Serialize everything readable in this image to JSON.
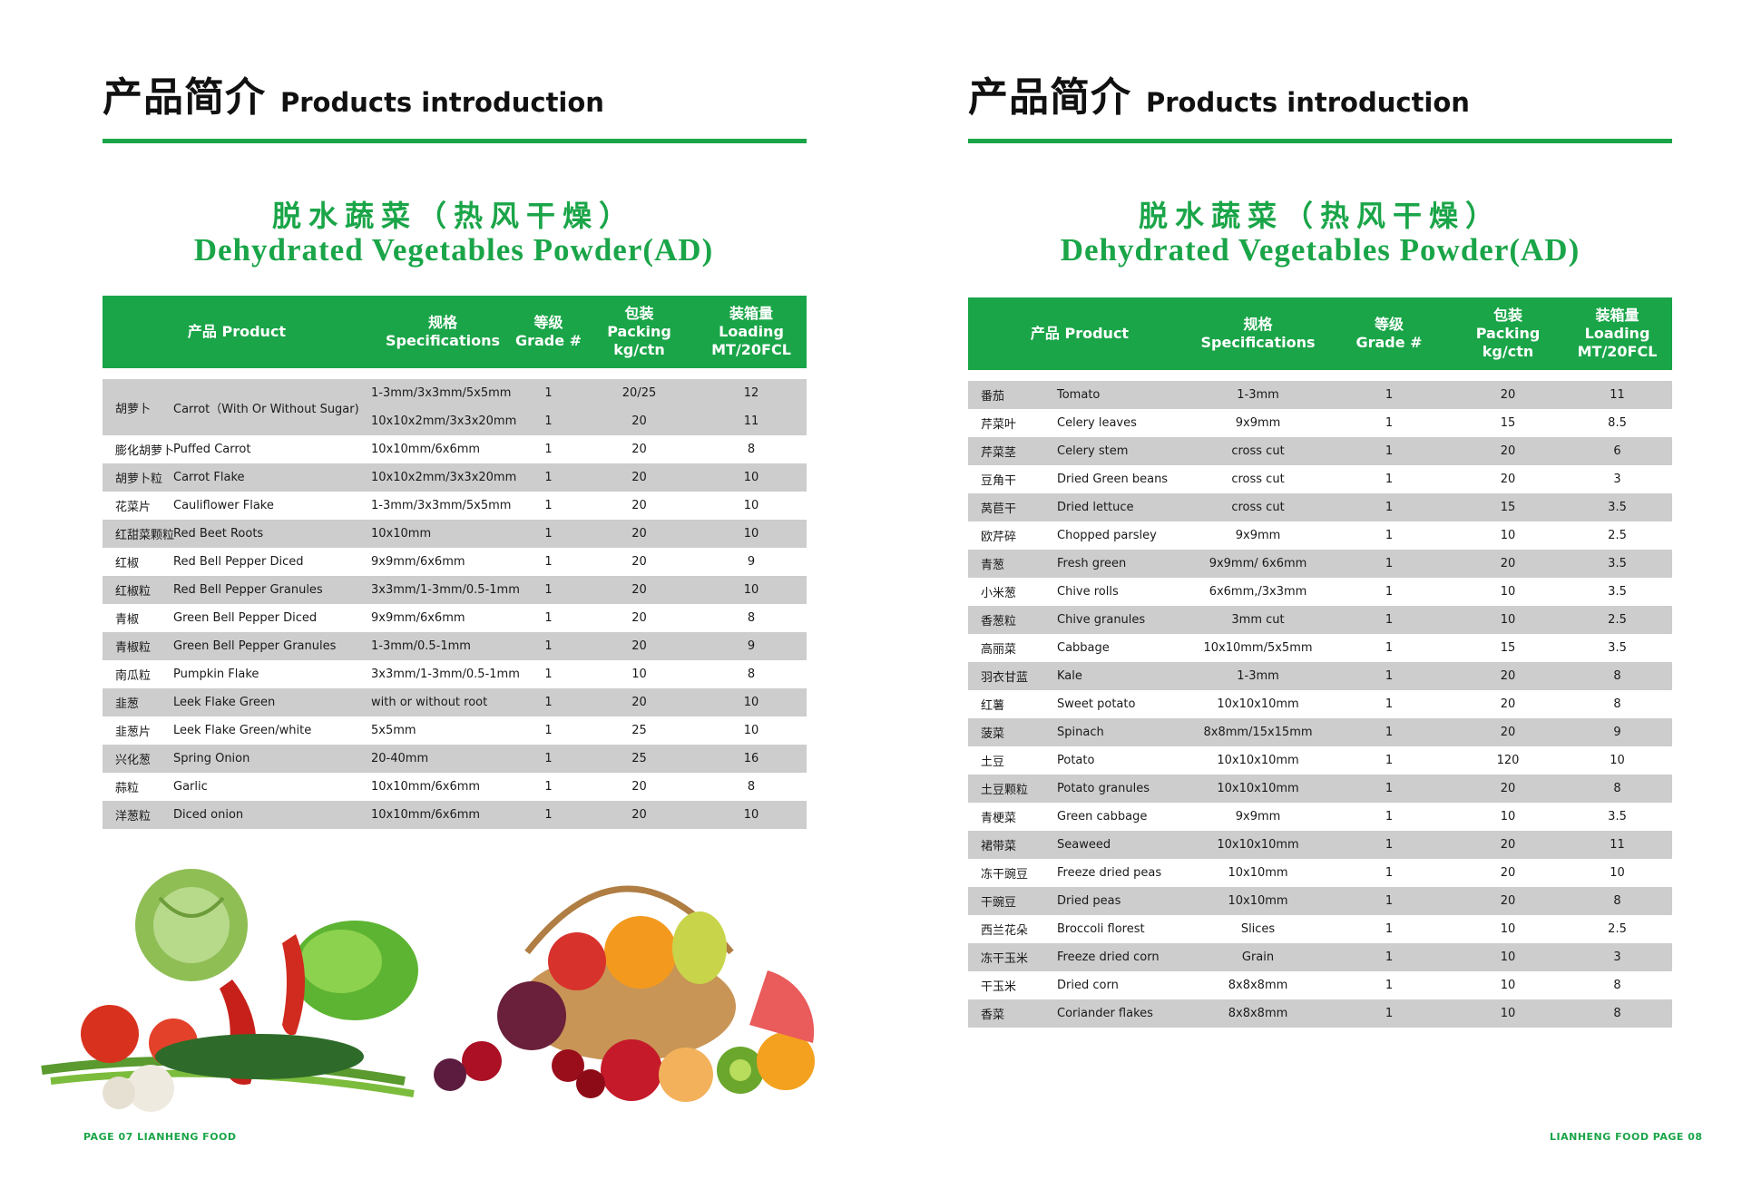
{
  "section_header": {
    "cn": "产品简介",
    "en": "Products introduction"
  },
  "title": {
    "cn": "脱水蔬菜（热风干燥）",
    "en": "Dehydrated Vegetables Powder(AD)"
  },
  "columns": {
    "product": "产品 Product",
    "spec": "规格 Specifications",
    "grade_cn": "等级",
    "grade_en": "Grade #",
    "pack_cn": "包装",
    "pack_en": "Packing kg/ctn",
    "load_cn": "装箱量",
    "load_en1": "Loading",
    "load_en2": "MT/20FCL"
  },
  "left_rows": [
    {
      "cn": "胡萝卜",
      "en": "Carrot（With Or Without Sugar)",
      "specs": [
        "1-3mm/3x3mm/5x5mm",
        "10x10x2mm/3x3x20mm"
      ],
      "grades": [
        "1",
        "1"
      ],
      "packs": [
        "20/25",
        "20"
      ],
      "loads": [
        "12",
        "11"
      ]
    },
    {
      "cn": "膨化胡萝卜",
      "en": "Puffed Carrot",
      "spec": "10x10mm/6x6mm",
      "grade": "1",
      "pack": "20",
      "load": "8"
    },
    {
      "cn": "胡萝卜粒",
      "en": "Carrot Flake",
      "spec": "10x10x2mm/3x3x20mm",
      "grade": "1",
      "pack": "20",
      "load": "10"
    },
    {
      "cn": "花菜片",
      "en": "Cauliflower Flake",
      "spec": "1-3mm/3x3mm/5x5mm",
      "grade": "1",
      "pack": "20",
      "load": "10"
    },
    {
      "cn": "红甜菜颗粒",
      "en": "Red Beet Roots",
      "spec": "10x10mm",
      "grade": "1",
      "pack": "20",
      "load": "10"
    },
    {
      "cn": "红椒",
      "en": "Red Bell Pepper Diced",
      "spec": "9x9mm/6x6mm",
      "grade": "1",
      "pack": "20",
      "load": "9"
    },
    {
      "cn": "红椒粒",
      "en": "Red Bell Pepper Granules",
      "spec": "3x3mm/1-3mm/0.5-1mm",
      "grade": "1",
      "pack": "20",
      "load": "10"
    },
    {
      "cn": "青椒",
      "en": "Green Bell Pepper Diced",
      "spec": "9x9mm/6x6mm",
      "grade": "1",
      "pack": "20",
      "load": "8"
    },
    {
      "cn": "青椒粒",
      "en": "Green Bell Pepper Granules",
      "spec": "1-3mm/0.5-1mm",
      "grade": "1",
      "pack": "20",
      "load": "9"
    },
    {
      "cn": "南瓜粒",
      "en": "Pumpkin Flake",
      "spec": "3x3mm/1-3mm/0.5-1mm",
      "grade": "1",
      "pack": "10",
      "load": "8"
    },
    {
      "cn": "韭葱",
      "en": "Leek Flake Green",
      "spec": "with or without root",
      "grade": "1",
      "pack": "20",
      "load": "10"
    },
    {
      "cn": "韭葱片",
      "en": "Leek Flake Green/white",
      "spec": "5x5mm",
      "grade": "1",
      "pack": "25",
      "load": "10"
    },
    {
      "cn": "兴化葱",
      "en": "Spring Onion",
      "spec": "20-40mm",
      "grade": "1",
      "pack": "25",
      "load": "16"
    },
    {
      "cn": "蒜粒",
      "en": "Garlic",
      "spec": "10x10mm/6x6mm",
      "grade": "1",
      "pack": "20",
      "load": "8"
    },
    {
      "cn": "洋葱粒",
      "en": "Diced onion",
      "spec": "10x10mm/6x6mm",
      "grade": "1",
      "pack": "20",
      "load": "10"
    }
  ],
  "right_rows": [
    {
      "cn": "番茄",
      "en": "Tomato",
      "spec": "1-3mm",
      "grade": "1",
      "pack": "20",
      "load": "11"
    },
    {
      "cn": "芹菜叶",
      "en": "Celery leaves",
      "spec": "9x9mm",
      "grade": "1",
      "pack": "15",
      "load": "8.5"
    },
    {
      "cn": "芹菜茎",
      "en": "Celery stem",
      "spec": "cross cut",
      "grade": "1",
      "pack": "20",
      "load": "6"
    },
    {
      "cn": "豆角干",
      "en": "Dried Green beans",
      "spec": "cross cut",
      "grade": "1",
      "pack": "20",
      "load": "3"
    },
    {
      "cn": "莴苣干",
      "en": "Dried lettuce",
      "spec": "cross cut",
      "grade": "1",
      "pack": "15",
      "load": "3.5"
    },
    {
      "cn": "欧芹碎",
      "en": "Chopped parsley",
      "spec": "9x9mm",
      "grade": "1",
      "pack": "10",
      "load": "2.5"
    },
    {
      "cn": "青葱",
      "en": "Fresh green",
      "spec": "9x9mm/ 6x6mm",
      "grade": "1",
      "pack": "20",
      "load": "3.5"
    },
    {
      "cn": "小米葱",
      "en": "Chive rolls",
      "spec": "6x6mm,/3x3mm",
      "grade": "1",
      "pack": "10",
      "load": "3.5"
    },
    {
      "cn": "香葱粒",
      "en": "Chive granules",
      "spec": "3mm cut",
      "grade": "1",
      "pack": "10",
      "load": "2.5"
    },
    {
      "cn": "高丽菜",
      "en": "Cabbage",
      "spec": "10x10mm/5x5mm",
      "grade": "1",
      "pack": "15",
      "load": "3.5"
    },
    {
      "cn": "羽衣甘蓝",
      "en": "Kale",
      "spec": "1-3mm",
      "grade": "1",
      "pack": "20",
      "load": "8"
    },
    {
      "cn": "红薯",
      "en": "Sweet potato",
      "spec": "10x10x10mm",
      "grade": "1",
      "pack": "20",
      "load": "8"
    },
    {
      "cn": "菠菜",
      "en": "Spinach",
      "spec": "8x8mm/15x15mm",
      "grade": "1",
      "pack": "20",
      "load": "9"
    },
    {
      "cn": "土豆",
      "en": "Potato",
      "spec": "10x10x10mm",
      "grade": "1",
      "pack": "120",
      "load": "10"
    },
    {
      "cn": "土豆颗粒",
      "en": "Potato granules",
      "spec": "10x10x10mm",
      "grade": "1",
      "pack": "20",
      "load": "8"
    },
    {
      "cn": "青梗菜",
      "en": "Green cabbage",
      "spec": "9x9mm",
      "grade": "1",
      "pack": "10",
      "load": "3.5"
    },
    {
      "cn": "裙带菜",
      "en": "Seaweed",
      "spec": "10x10x10mm",
      "grade": "1",
      "pack": "20",
      "load": "11"
    },
    {
      "cn": "冻干豌豆",
      "en": "Freeze dried peas",
      "spec": "10x10mm",
      "grade": "1",
      "pack": "20",
      "load": "10"
    },
    {
      "cn": "干豌豆",
      "en": "Dried peas",
      "spec": "10x10mm",
      "grade": "1",
      "pack": "20",
      "load": "8"
    },
    {
      "cn": "西兰花朵",
      "en": "Broccoli florest",
      "spec": "Slices",
      "grade": "1",
      "pack": "10",
      "load": "2.5"
    },
    {
      "cn": "冻干玉米",
      "en": "Freeze dried corn",
      "spec": "Grain",
      "grade": "1",
      "pack": "10",
      "load": "3"
    },
    {
      "cn": "干玉米",
      "en": "Dried corn",
      "spec": "8x8x8mm",
      "grade": "1",
      "pack": "10",
      "load": "8"
    },
    {
      "cn": "香菜",
      "en": "Coriander flakes",
      "spec": "8x8x8mm",
      "grade": "1",
      "pack": "10",
      "load": "8"
    }
  ],
  "footer_left": "PAGE 07  LIANHENG FOOD",
  "footer_right": "LIANHENG FOOD  PAGE 08",
  "colors": {
    "accent": "#1aa548",
    "row_shade": "#cdcdcd"
  }
}
